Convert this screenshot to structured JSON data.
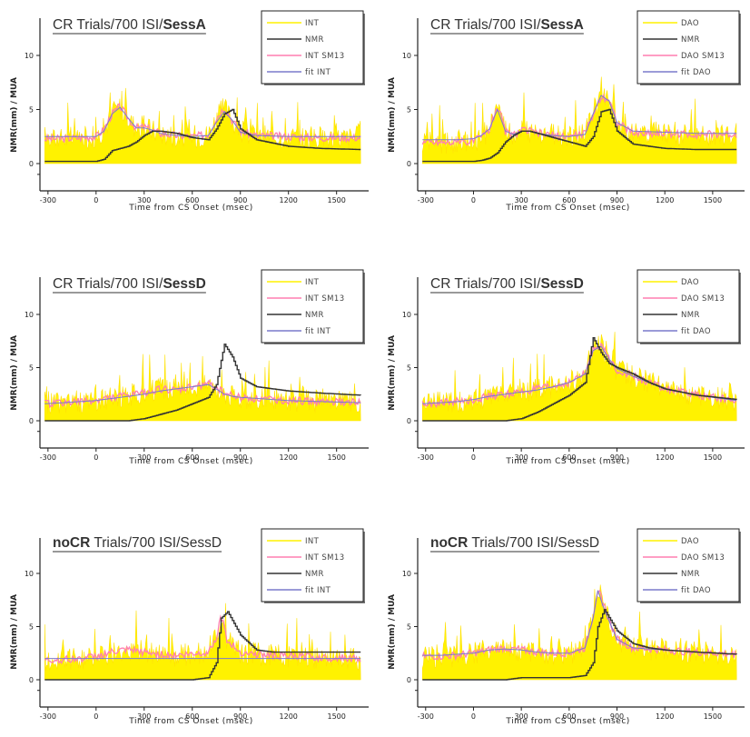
{
  "chart_data": [
    {
      "type": "line",
      "title": [
        {
          "text": "CR Trials/700 ISI/",
          "bold": false
        },
        {
          "text": "SessA",
          "bold": true
        }
      ],
      "xlabel": "Time from CS Onset (msec)",
      "ylabel": "NMR(mm) / MUA",
      "xlim": [
        -350,
        1700
      ],
      "ylim": [
        -2,
        14
      ],
      "xticks": [
        -300,
        0,
        300,
        600,
        900,
        1200,
        1500
      ],
      "yticks": [
        0,
        5,
        10
      ],
      "legend": [
        "INT",
        "NMR",
        "INT SM13",
        "fit INT"
      ],
      "x": [
        -320,
        -200,
        -100,
        0,
        50,
        100,
        150,
        200,
        250,
        300,
        350,
        400,
        500,
        600,
        700,
        750,
        800,
        850,
        900,
        1000,
        1200,
        1400,
        1650
      ],
      "series": [
        {
          "name": "INT SM13",
          "values": [
            2.3,
            2.3,
            2.4,
            2.5,
            3.2,
            4.6,
            5.3,
            4.2,
            3.3,
            3.4,
            3.1,
            2.8,
            2.6,
            2.5,
            2.7,
            4.2,
            5.2,
            4.0,
            3.0,
            2.6,
            2.5,
            2.4,
            2.4
          ]
        },
        {
          "name": "NMR",
          "values": [
            0.2,
            0.2,
            0.2,
            0.2,
            0.4,
            1.2,
            1.4,
            1.6,
            2.0,
            2.6,
            3.0,
            3.0,
            2.8,
            2.4,
            2.2,
            3.2,
            4.6,
            5.0,
            3.2,
            2.2,
            1.6,
            1.4,
            1.3
          ]
        },
        {
          "name": "fit INT",
          "values": [
            2.5,
            2.5,
            2.5,
            2.5,
            3.0,
            4.6,
            5.2,
            4.2,
            3.3,
            3.3,
            3.1,
            2.8,
            2.6,
            2.5,
            2.6,
            3.8,
            4.8,
            4.0,
            2.9,
            2.6,
            2.5,
            2.5,
            2.5
          ]
        }
      ]
    },
    {
      "type": "line",
      "title": [
        {
          "text": "CR Trials/700 ISI/",
          "bold": false
        },
        {
          "text": "SessA",
          "bold": true
        }
      ],
      "xlabel": "Time from CS Onset (msec)",
      "ylabel": "NMR(mm) / MUA",
      "xlim": [
        -350,
        1700
      ],
      "ylim": [
        -2,
        14
      ],
      "xticks": [
        -300,
        0,
        300,
        600,
        900,
        1200,
        1500
      ],
      "yticks": [
        0,
        5,
        10
      ],
      "legend": [
        "DAO",
        "NMR",
        "DAO SM13",
        "fit DAO"
      ],
      "x": [
        -320,
        -200,
        -100,
        0,
        50,
        100,
        150,
        200,
        250,
        300,
        350,
        400,
        500,
        600,
        700,
        750,
        800,
        850,
        900,
        1000,
        1200,
        1400,
        1650
      ],
      "series": [
        {
          "name": "DAO SM13",
          "values": [
            2.0,
            2.0,
            2.0,
            2.1,
            2.5,
            3.2,
            5.4,
            3.0,
            2.6,
            3.1,
            3.0,
            2.8,
            2.6,
            2.5,
            2.8,
            4.5,
            6.2,
            6.0,
            3.8,
            2.8,
            2.8,
            2.7,
            2.7
          ]
        },
        {
          "name": "NMR",
          "values": [
            0.2,
            0.2,
            0.2,
            0.2,
            0.3,
            0.5,
            1.0,
            2.0,
            2.6,
            3.0,
            3.0,
            2.8,
            2.4,
            2.0,
            1.6,
            2.5,
            4.8,
            5.0,
            3.0,
            1.8,
            1.4,
            1.3,
            1.3
          ]
        },
        {
          "name": "fit DAO",
          "values": [
            2.2,
            2.2,
            2.2,
            2.3,
            2.6,
            3.2,
            5.0,
            3.0,
            2.7,
            3.0,
            3.0,
            2.8,
            2.6,
            2.5,
            2.7,
            4.6,
            6.3,
            5.8,
            3.8,
            3.0,
            2.9,
            2.8,
            2.8
          ]
        }
      ]
    },
    {
      "type": "line",
      "title": [
        {
          "text": "CR Trials/700 ISI/",
          "bold": false
        },
        {
          "text": "SessD",
          "bold": true
        }
      ],
      "xlabel": "Time from CS Onset (msec)",
      "ylabel": "NMR(mm) / MUA",
      "xlim": [
        -350,
        1700
      ],
      "ylim": [
        -2,
        14
      ],
      "xticks": [
        -300,
        0,
        300,
        600,
        900,
        1200,
        1500
      ],
      "yticks": [
        0,
        5,
        10
      ],
      "legend": [
        "INT",
        "INT SM13",
        "NMR",
        "fit INT"
      ],
      "x": [
        -320,
        -200,
        -100,
        0,
        100,
        200,
        300,
        400,
        500,
        600,
        700,
        750,
        800,
        850,
        900,
        1000,
        1100,
        1200,
        1400,
        1650
      ],
      "series": [
        {
          "name": "INT SM13",
          "values": [
            1.6,
            1.7,
            1.8,
            1.9,
            2.2,
            2.4,
            2.6,
            3.0,
            2.8,
            3.2,
            3.5,
            3.2,
            2.6,
            2.4,
            2.2,
            2.1,
            2.0,
            1.9,
            1.8,
            1.7
          ]
        },
        {
          "name": "NMR",
          "values": [
            0.0,
            0.0,
            0.0,
            0.0,
            0.0,
            0.0,
            0.2,
            0.6,
            1.0,
            1.6,
            2.2,
            3.4,
            7.2,
            6.0,
            4.0,
            3.2,
            3.0,
            2.8,
            2.6,
            2.4
          ]
        },
        {
          "name": "fit INT",
          "values": [
            1.6,
            1.7,
            1.8,
            1.9,
            2.1,
            2.3,
            2.5,
            2.8,
            3.0,
            3.2,
            3.4,
            3.0,
            2.5,
            2.3,
            2.2,
            2.1,
            2.0,
            1.9,
            1.8,
            1.7
          ]
        }
      ]
    },
    {
      "type": "line",
      "title": [
        {
          "text": "CR Trials/700 ISI/",
          "bold": false
        },
        {
          "text": "SessD",
          "bold": true
        }
      ],
      "xlabel": "Time from CS Onset (msec)",
      "ylabel": "NMR(mm) / MUA",
      "xlim": [
        -350,
        1700
      ],
      "ylim": [
        -2,
        14
      ],
      "xticks": [
        -300,
        0,
        300,
        600,
        900,
        1200,
        1500
      ],
      "yticks": [
        0,
        5,
        10
      ],
      "legend": [
        "DAO",
        "DAO SM13",
        "NMR",
        "fit DAO"
      ],
      "x": [
        -320,
        -200,
        -100,
        0,
        100,
        200,
        300,
        400,
        500,
        600,
        700,
        750,
        800,
        850,
        900,
        1000,
        1100,
        1200,
        1400,
        1650
      ],
      "series": [
        {
          "name": "DAO SM13",
          "values": [
            1.6,
            1.7,
            1.8,
            2.0,
            2.3,
            2.5,
            2.7,
            3.0,
            3.2,
            3.6,
            4.4,
            6.8,
            7.2,
            5.8,
            4.8,
            4.2,
            3.6,
            3.0,
            2.4,
            1.9
          ]
        },
        {
          "name": "NMR",
          "values": [
            0.0,
            0.0,
            0.0,
            0.0,
            0.0,
            0.0,
            0.2,
            0.8,
            1.6,
            2.4,
            3.6,
            7.8,
            6.4,
            5.4,
            5.0,
            4.4,
            3.6,
            3.0,
            2.4,
            2.0
          ]
        },
        {
          "name": "fit DAO",
          "values": [
            1.6,
            1.7,
            1.8,
            2.0,
            2.3,
            2.5,
            2.7,
            2.9,
            3.2,
            3.6,
            4.4,
            6.6,
            7.0,
            5.8,
            4.9,
            4.2,
            3.6,
            3.0,
            2.4,
            1.9
          ]
        }
      ]
    },
    {
      "type": "line",
      "title": [
        {
          "text": "noCR",
          "bold": true
        },
        {
          "text": " Trials/700 ISI/SessD",
          "bold": false
        }
      ],
      "xlabel": "Time from CS Onset (msec)",
      "ylabel": "NMR(mm) / MUA",
      "xlim": [
        -350,
        1700
      ],
      "ylim": [
        -2,
        14
      ],
      "xticks": [
        -300,
        0,
        300,
        600,
        900,
        1200,
        1500
      ],
      "yticks": [
        0,
        5,
        10
      ],
      "legend": [
        "INT",
        "INT SM13",
        "NMR",
        "fit INT"
      ],
      "x": [
        -320,
        -200,
        -100,
        0,
        100,
        200,
        300,
        400,
        500,
        600,
        700,
        750,
        780,
        820,
        900,
        1000,
        1100,
        1200,
        1400,
        1650
      ],
      "series": [
        {
          "name": "INT SM13",
          "values": [
            1.8,
            1.9,
            2.0,
            2.2,
            2.6,
            2.8,
            2.6,
            2.4,
            2.3,
            2.4,
            2.6,
            4.0,
            6.0,
            3.6,
            2.6,
            2.4,
            2.3,
            2.2,
            2.1,
            2.0
          ]
        },
        {
          "name": "NMR",
          "values": [
            0.0,
            0.0,
            0.0,
            0.0,
            0.0,
            0.0,
            0.0,
            0.0,
            0.0,
            0.0,
            0.2,
            1.6,
            5.8,
            6.4,
            4.2,
            2.8,
            2.6,
            2.6,
            2.6,
            2.6
          ]
        },
        {
          "name": "fit INT",
          "values": [
            2.0,
            2.0,
            2.0,
            2.0,
            2.0,
            2.0,
            2.0,
            2.0,
            2.0,
            2.0,
            2.0,
            2.0,
            2.0,
            2.0,
            2.0,
            2.0,
            2.0,
            2.0,
            2.0,
            2.0
          ]
        }
      ]
    },
    {
      "type": "line",
      "title": [
        {
          "text": "noCR",
          "bold": true
        },
        {
          "text": " Trials/700 ISI/SessD",
          "bold": false
        }
      ],
      "xlabel": "Time from CS Onset (msec)",
      "ylabel": "NMR(mm) / MUA",
      "xlim": [
        -350,
        1700
      ],
      "ylim": [
        -2,
        14
      ],
      "xticks": [
        -300,
        0,
        300,
        600,
        900,
        1200,
        1500
      ],
      "yticks": [
        0,
        5,
        10
      ],
      "legend": [
        "DAO",
        "DAO SM13",
        "NMR",
        "fit DAO"
      ],
      "x": [
        -320,
        -200,
        -100,
        0,
        100,
        200,
        300,
        400,
        500,
        600,
        700,
        750,
        780,
        820,
        900,
        1000,
        1100,
        1200,
        1400,
        1650
      ],
      "series": [
        {
          "name": "DAO SM13",
          "values": [
            2.2,
            2.2,
            2.3,
            2.5,
            2.8,
            3.0,
            2.8,
            2.6,
            2.5,
            2.5,
            3.0,
            6.0,
            8.6,
            6.8,
            3.8,
            3.0,
            2.9,
            2.8,
            2.6,
            2.4
          ]
        },
        {
          "name": "NMR",
          "values": [
            0.0,
            0.0,
            0.0,
            0.0,
            0.0,
            0.0,
            0.2,
            0.2,
            0.2,
            0.2,
            0.4,
            1.6,
            5.0,
            6.6,
            4.6,
            3.4,
            3.0,
            2.8,
            2.6,
            2.4
          ]
        },
        {
          "name": "fit DAO",
          "values": [
            2.3,
            2.3,
            2.4,
            2.5,
            2.8,
            2.9,
            2.8,
            2.6,
            2.5,
            2.5,
            3.0,
            5.8,
            8.4,
            6.6,
            3.8,
            3.0,
            2.9,
            2.8,
            2.6,
            2.4
          ]
        }
      ]
    }
  ],
  "colors": {
    "raw_fill": "#fff200",
    "raw_line": "#ffe100",
    "smoothed": "#ff7fb0",
    "nmr": "#333333",
    "fit": "#7a7acc",
    "title": "#333333"
  }
}
